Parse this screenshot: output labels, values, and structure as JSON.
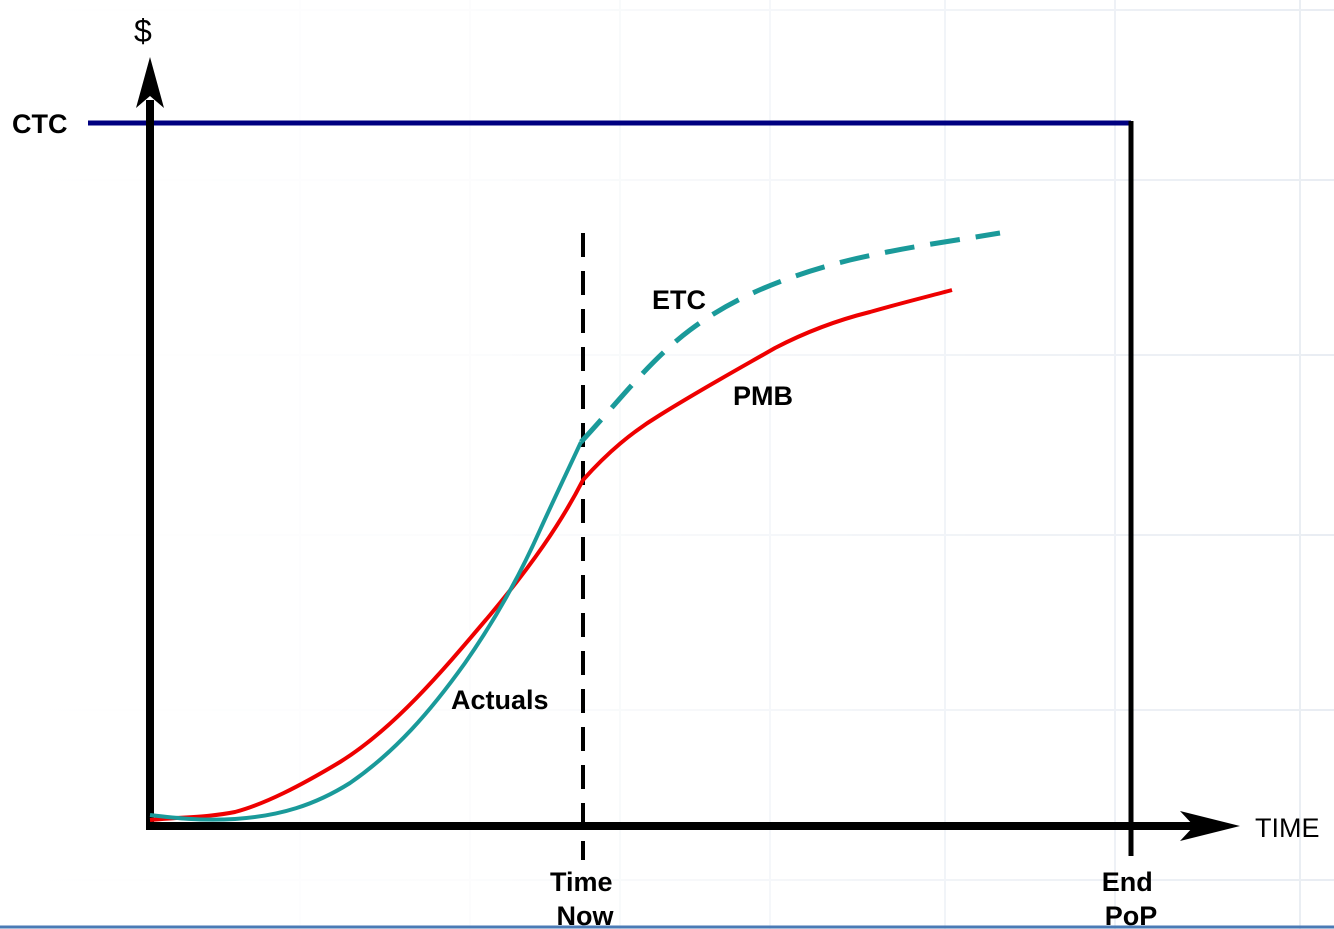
{
  "labels": {
    "y_axis": "$",
    "x_axis": "TIME",
    "ctc": "CTC",
    "etc": "ETC",
    "pmb": "PMB",
    "actuals": "Actuals",
    "time_now": [
      "Time",
      "Now"
    ],
    "end_pop": [
      "End",
      "PoP"
    ]
  },
  "colors": {
    "axes": "#000000",
    "ctc_line": "#000080",
    "pmb_curve": "#ee0000",
    "actuals_curve": "#1a9a9a",
    "etc_curve": "#1a9a9a",
    "grid": "#e9edf3",
    "bottom_rule": "#4a7ab5"
  }
}
